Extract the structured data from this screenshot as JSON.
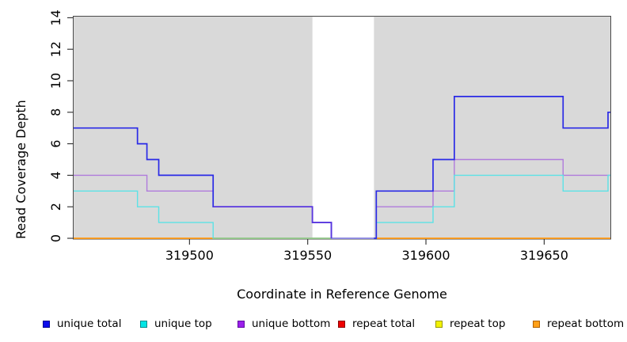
{
  "figure": {
    "x_axis_title": "Coordinate in Reference Genome",
    "y_axis_title": "Read Coverage Depth"
  },
  "chart_data": {
    "type": "line",
    "subtype": "step-coverage",
    "xlabel": "Coordinate in Reference Genome",
    "ylabel": "Read Coverage Depth",
    "xlim": [
      319451,
      319678
    ],
    "ylim": [
      0,
      14
    ],
    "x_ticks": [
      319500,
      319550,
      319600,
      319650
    ],
    "y_ticks": [
      0,
      2,
      4,
      6,
      8,
      10,
      12,
      14
    ],
    "grid": "off",
    "plot_background_color": "#D9D9D9",
    "uncovered_gap_region": {
      "from": 319552,
      "to": 319578,
      "color": "#FFFFFF"
    },
    "series": [
      {
        "name": "repeat total",
        "color": "#E00000",
        "width": 1.2,
        "points": [
          [
            319451,
            0
          ],
          [
            319678,
            0
          ]
        ]
      },
      {
        "name": "repeat top",
        "color": "#F0F000",
        "width": 1.2,
        "points": [
          [
            319451,
            0
          ],
          [
            319678,
            0
          ]
        ]
      },
      {
        "name": "repeat bottom",
        "color": "#FF9E1E",
        "width": 1.7,
        "points": [
          [
            319451,
            0
          ],
          [
            319678,
            0
          ]
        ]
      },
      {
        "name": "unique bottom",
        "color": "#B07BDC",
        "width": 1.4,
        "points": [
          [
            319451,
            4
          ],
          [
            319482,
            4
          ],
          [
            319482,
            3
          ],
          [
            319510,
            3
          ],
          [
            319510,
            2
          ],
          [
            319552,
            2
          ],
          [
            319552,
            1
          ],
          [
            319560,
            1
          ],
          [
            319560,
            0
          ],
          [
            319579,
            0
          ],
          [
            319579,
            2
          ],
          [
            319603,
            2
          ],
          [
            319603,
            3
          ],
          [
            319612,
            3
          ],
          [
            319612,
            5
          ],
          [
            319658,
            5
          ],
          [
            319658,
            4
          ],
          [
            319678,
            4
          ]
        ]
      },
      {
        "name": "unique top",
        "color": "#5CE2E6",
        "width": 1.4,
        "points": [
          [
            319451,
            3
          ],
          [
            319478,
            3
          ],
          [
            319478,
            2
          ],
          [
            319487,
            2
          ],
          [
            319487,
            1
          ],
          [
            319510,
            1
          ],
          [
            319510,
            0
          ],
          [
            319579,
            0
          ],
          [
            319579,
            1
          ],
          [
            319603,
            1
          ],
          [
            319603,
            2
          ],
          [
            319612,
            2
          ],
          [
            319612,
            4
          ],
          [
            319658,
            4
          ],
          [
            319658,
            3
          ],
          [
            319677,
            3
          ],
          [
            319677,
            4
          ],
          [
            319678,
            4
          ]
        ]
      },
      {
        "name": "unique total",
        "color": "#2A2AE6",
        "width": 1.7,
        "points": [
          [
            319451,
            7
          ],
          [
            319478,
            7
          ],
          [
            319478,
            6
          ],
          [
            319482,
            6
          ],
          [
            319482,
            5
          ],
          [
            319487,
            5
          ],
          [
            319487,
            4
          ],
          [
            319510,
            4
          ],
          [
            319510,
            2
          ],
          [
            319552,
            2
          ],
          [
            319552,
            1
          ],
          [
            319560,
            1
          ],
          [
            319560,
            0
          ],
          [
            319579,
            0
          ],
          [
            319579,
            3
          ],
          [
            319603,
            3
          ],
          [
            319603,
            5
          ],
          [
            319612,
            5
          ],
          [
            319612,
            9
          ],
          [
            319658,
            9
          ],
          [
            319658,
            7
          ],
          [
            319677,
            7
          ],
          [
            319677,
            8
          ],
          [
            319678,
            8
          ]
        ]
      }
    ],
    "overlap_artifacts": [
      {
        "name": "cyan-over-orange-at-zero",
        "color": "#8CCB8F",
        "width": 1.3,
        "points": [
          [
            319510,
            0
          ],
          [
            319560,
            0
          ]
        ]
      },
      {
        "name": "purple-over-blue-at-zero",
        "color": "#A9A2E2",
        "width": 1.5,
        "points": [
          [
            319560,
            0
          ],
          [
            319578,
            0
          ]
        ]
      },
      {
        "name": "blue-over-purple-mid",
        "color": "#5A36DE",
        "width": 1.7,
        "points": [
          [
            319510,
            2
          ],
          [
            319552,
            2
          ],
          [
            319552,
            1
          ],
          [
            319560,
            1
          ],
          [
            319560,
            0
          ]
        ]
      }
    ]
  },
  "legend": {
    "items": [
      {
        "label": "unique total",
        "fill": "#0B0BEB",
        "border": "#000090"
      },
      {
        "label": "unique top",
        "fill": "#00E5E5",
        "border": "#008B8B"
      },
      {
        "label": "unique bottom",
        "fill": "#9C1FEB",
        "border": "#5E0DA0"
      },
      {
        "label": "repeat total",
        "fill": "#EE0000",
        "border": "#8B0000"
      },
      {
        "label": "repeat top",
        "fill": "#F2F200",
        "border": "#999900"
      },
      {
        "label": "repeat bottom",
        "fill": "#FFA018",
        "border": "#B06000"
      }
    ]
  }
}
